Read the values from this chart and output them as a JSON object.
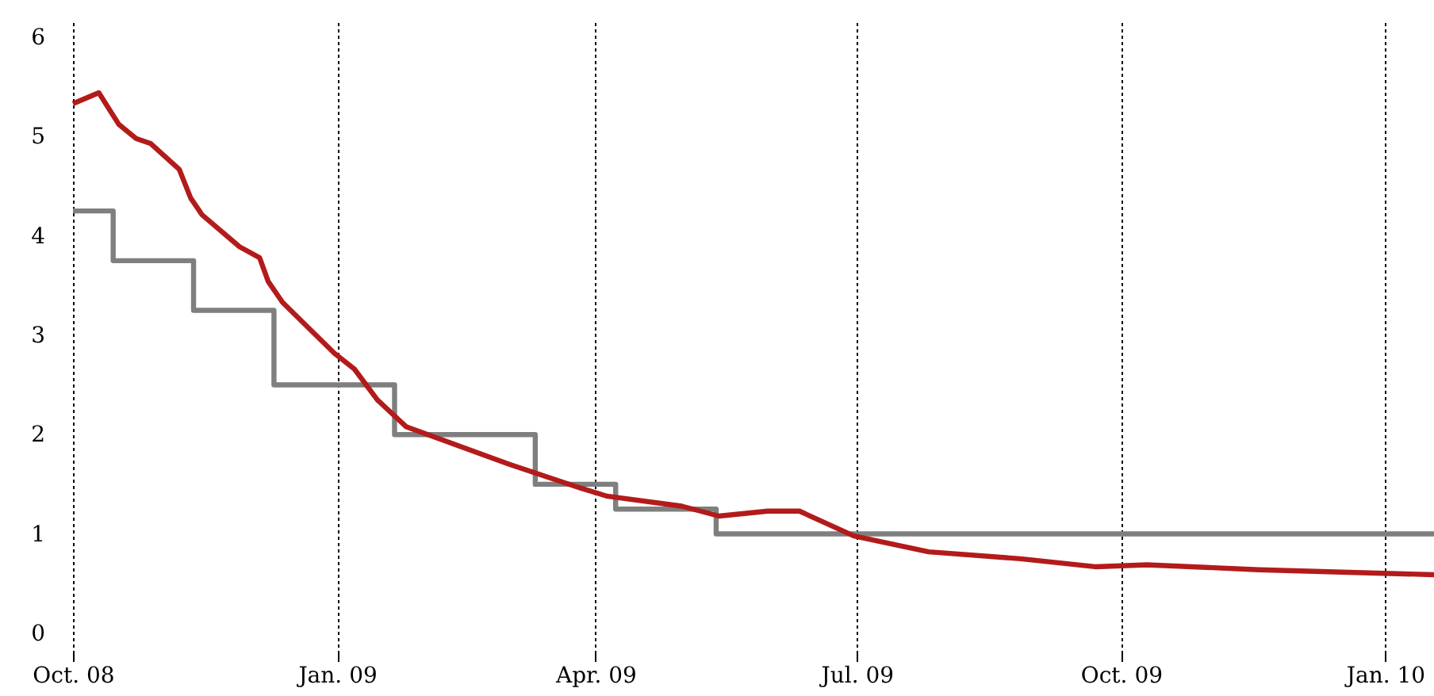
{
  "chart_data": {
    "type": "line",
    "xlim": [
      "2008-10-01",
      "2010-01-18"
    ],
    "ylim": [
      -0.2,
      6.15
    ],
    "xticks": [
      {
        "value": "2008-10-01",
        "label": "Oct. 08"
      },
      {
        "value": "2009-01-01",
        "label": "Jan. 09"
      },
      {
        "value": "2009-04-01",
        "label": "Apr. 09"
      },
      {
        "value": "2009-07-01",
        "label": "Jul. 09"
      },
      {
        "value": "2009-10-01",
        "label": "Oct. 09"
      },
      {
        "value": "2010-01-01",
        "label": "Jan. 10"
      }
    ],
    "yticks": [
      0,
      1,
      2,
      3,
      4,
      5,
      6
    ],
    "grid": "x",
    "line_style": "solid",
    "series": [
      {
        "type": "step",
        "color": "#7f7f7f",
        "x": [
          "2008-10-01",
          "2008-10-15",
          "2008-11-12",
          "2008-12-10",
          "2009-01-21",
          "2009-03-11",
          "2009-04-08",
          "2009-05-13",
          "2010-01-18"
        ],
        "values": [
          4.25,
          3.75,
          3.25,
          2.5,
          2.0,
          1.5,
          1.25,
          1.0,
          1.0
        ]
      },
      {
        "type": "line",
        "color": "#b31b1b",
        "x": [
          "2008-10-01",
          "2008-10-10",
          "2008-10-17",
          "2008-10-23",
          "2008-10-28",
          "2008-11-07",
          "2008-11-11",
          "2008-11-15",
          "2008-11-28",
          "2008-12-05",
          "2008-12-08",
          "2008-12-13",
          "2008-12-31",
          "2009-01-07",
          "2009-01-15",
          "2009-01-25",
          "2009-03-02",
          "2009-03-27",
          "2009-04-05",
          "2009-05-01",
          "2009-05-14",
          "2009-05-31",
          "2009-06-11",
          "2009-06-30",
          "2009-07-26",
          "2009-08-27",
          "2009-09-22",
          "2009-10-10",
          "2009-11-18",
          "2010-01-18"
        ],
        "values": [
          5.33,
          5.44,
          5.12,
          4.98,
          4.93,
          4.67,
          4.38,
          4.21,
          3.89,
          3.78,
          3.54,
          3.33,
          2.82,
          2.66,
          2.35,
          2.08,
          1.7,
          1.46,
          1.38,
          1.28,
          1.18,
          1.23,
          1.23,
          0.98,
          0.82,
          0.75,
          0.67,
          0.69,
          0.64,
          0.59
        ]
      }
    ]
  }
}
